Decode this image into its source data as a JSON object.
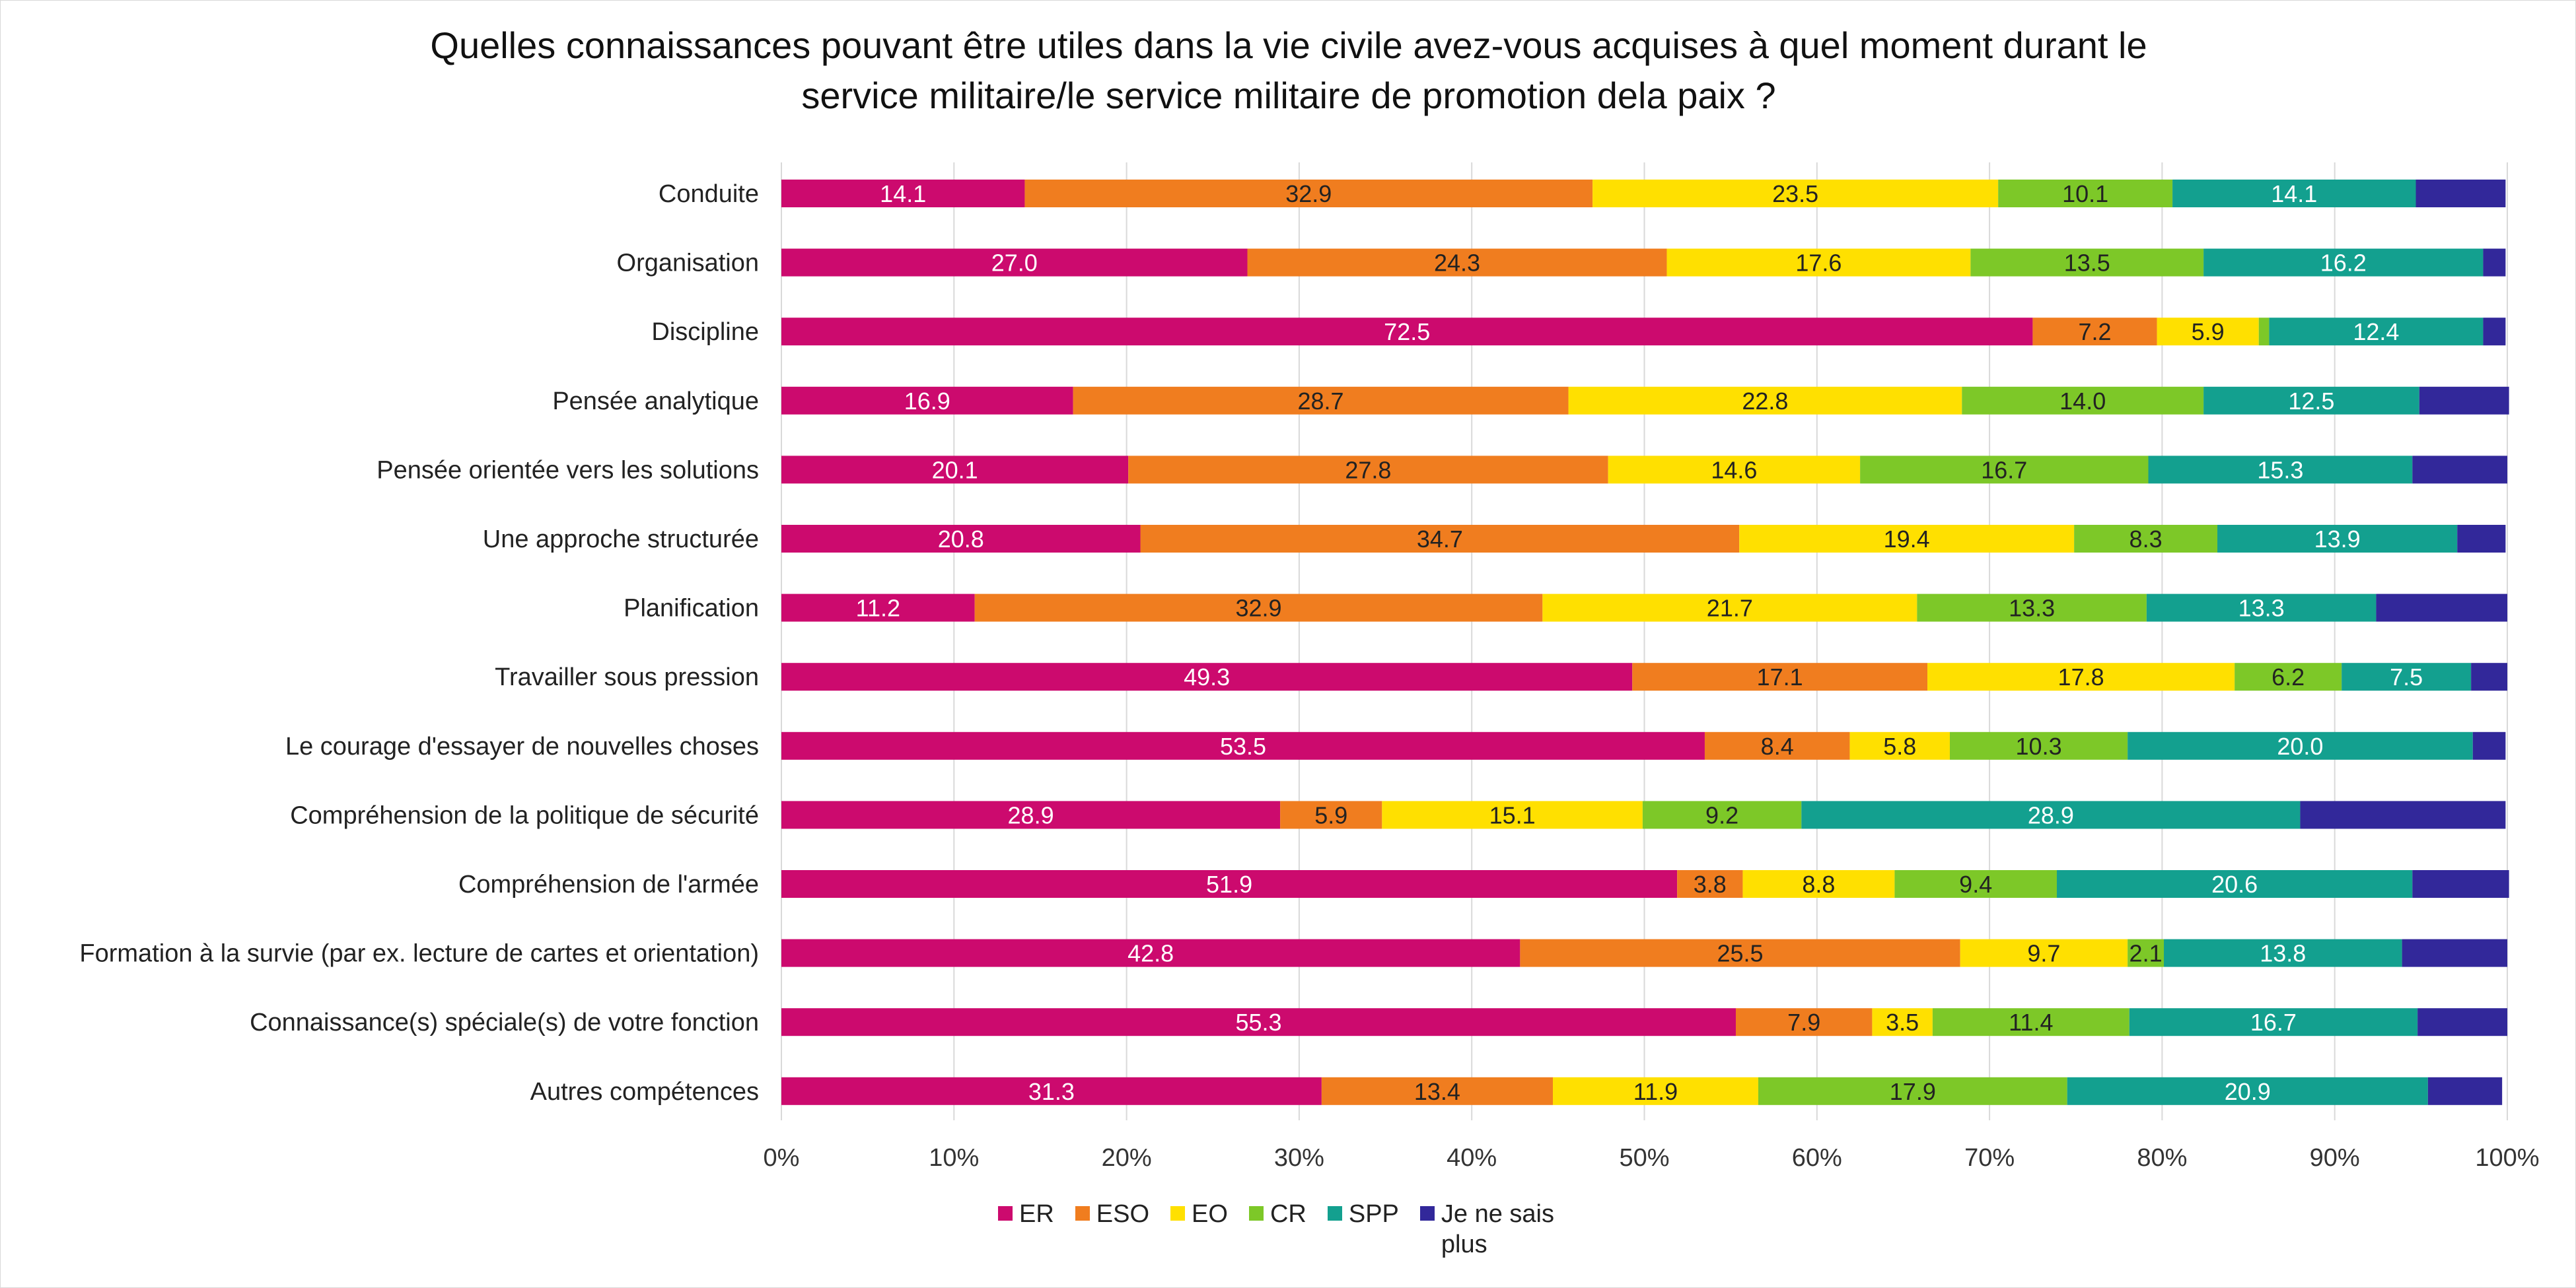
{
  "chart_data": {
    "type": "bar",
    "orientation": "horizontal",
    "stacked": true,
    "percent_scale": true,
    "title_lines": [
      "Quelles connaissances pouvant être utiles dans la vie civile avez-vous acquises à quel moment durant le",
      "service militaire/le service militaire de promotion dela paix ?"
    ],
    "categories": [
      "Conduite",
      "Organisation",
      "Discipline",
      "Pensée analytique",
      "Pensée orientée vers les solutions",
      "Une approche structurée",
      "Planification",
      "Travailler sous pression",
      "Le courage d'essayer de nouvelles choses",
      "Compréhension de la politique de sécurité",
      "Compréhension de l'armée",
      "Formation à la survie (par ex. lecture de cartes et orientation)",
      "Connaissance(s) spéciale(s) de votre fonction",
      "Autres compétences"
    ],
    "series": [
      {
        "name": "ER",
        "color": "#cc0a6e",
        "label_color": "#ffffff",
        "values": [
          14.1,
          27.0,
          72.5,
          16.9,
          20.1,
          20.8,
          11.2,
          49.3,
          53.5,
          28.9,
          51.9,
          42.8,
          55.3,
          31.3
        ],
        "labels": [
          "14.1",
          "27.0",
          "72.5",
          "16.9",
          "20.1",
          "20.8",
          "11.2",
          "49.3",
          "53.5",
          "28.9",
          "51.9",
          "42.8",
          "55.3",
          "31.3"
        ]
      },
      {
        "name": "ESO",
        "color": "#f07d1f",
        "label_color": "#222222",
        "values": [
          32.9,
          24.3,
          7.2,
          28.7,
          27.8,
          34.7,
          32.9,
          17.1,
          8.4,
          5.9,
          3.8,
          25.5,
          7.9,
          13.4
        ],
        "labels": [
          "32.9",
          "24.3",
          "7.2",
          "28.7",
          "27.8",
          "34.7",
          "32.9",
          "17.1",
          "8.4",
          "5.9",
          "3.8",
          "25.5",
          "7.9",
          "13.4"
        ]
      },
      {
        "name": "EO",
        "color": "#ffe000",
        "label_color": "#222222",
        "values": [
          23.5,
          17.6,
          5.9,
          22.8,
          14.6,
          19.4,
          21.7,
          17.8,
          5.8,
          15.1,
          8.8,
          9.7,
          3.5,
          11.9
        ],
        "labels": [
          "23.5",
          "17.6",
          "5.9",
          "22.8",
          "14.6",
          "19.4",
          "21.7",
          "17.8",
          "5.8",
          "15.1",
          "8.8",
          "9.7",
          "3.5",
          "11.9"
        ]
      },
      {
        "name": "CR",
        "color": "#7dc828",
        "label_color": "#222222",
        "values": [
          10.1,
          13.5,
          0.6,
          14.0,
          16.7,
          8.3,
          13.3,
          6.2,
          10.3,
          9.2,
          9.4,
          2.1,
          11.4,
          17.9
        ],
        "labels": [
          "10.1",
          "13.5",
          "",
          "14.0",
          "16.7",
          "8.3",
          "13.3",
          "6.2",
          "10.3",
          "9.2",
          "9.4",
          "2.1",
          "11.4",
          "17.9"
        ]
      },
      {
        "name": "SPP",
        "color": "#13a08f",
        "label_color": "#ffffff",
        "values": [
          14.1,
          16.2,
          12.4,
          12.5,
          15.3,
          13.9,
          13.3,
          7.5,
          20.0,
          28.9,
          20.6,
          13.8,
          16.7,
          20.9
        ],
        "labels": [
          "14.1",
          "16.2",
          "12.4",
          "12.5",
          "15.3",
          "13.9",
          "13.3",
          "7.5",
          "20.0",
          "28.9",
          "20.6",
          "13.8",
          "16.7",
          "20.9"
        ]
      },
      {
        "name": "Je ne sais plus",
        "color": "#32289a",
        "label_color": "#ffffff",
        "values": [
          5.2,
          1.3,
          1.3,
          5.2,
          5.5,
          2.8,
          7.6,
          2.1,
          1.9,
          11.9,
          5.6,
          6.1,
          5.2,
          4.3
        ],
        "labels": [
          "",
          "",
          "",
          "",
          "",
          "",
          "",
          "",
          "",
          "",
          "",
          "",
          "",
          ""
        ]
      }
    ],
    "xlim": [
      0,
      100
    ],
    "xticks": [
      "0%",
      "10%",
      "20%",
      "30%",
      "40%",
      "50%",
      "60%",
      "70%",
      "80%",
      "90%",
      "100%"
    ],
    "grid": "vertical",
    "legend": {
      "position": "bottom",
      "entries": [
        "ER",
        "ESO",
        "EO",
        "CR",
        "SPP",
        "Je ne sais plus"
      ]
    }
  }
}
